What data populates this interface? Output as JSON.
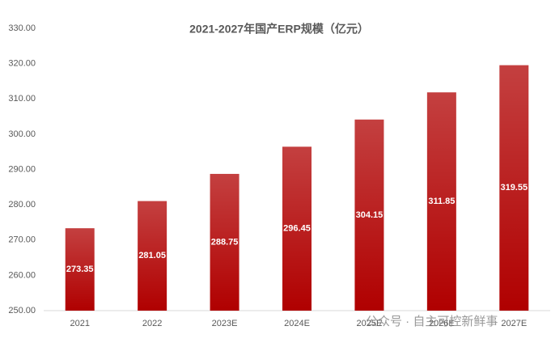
{
  "chart_data": {
    "type": "bar",
    "title": "2021-2027年国产ERP规模（亿元）",
    "categories": [
      "2021",
      "2022",
      "2023E",
      "2024E",
      "2025E",
      "2026E",
      "2027E"
    ],
    "values": [
      273.35,
      281.05,
      288.75,
      296.45,
      304.15,
      311.85,
      319.55
    ],
    "color": "#b00000",
    "ylim": [
      250,
      330
    ],
    "yticks": [
      {
        "value": 250,
        "label": "250.00"
      },
      {
        "value": 260,
        "label": "260.00"
      },
      {
        "value": 270,
        "label": "270.00"
      },
      {
        "value": 280,
        "label": "280.00"
      },
      {
        "value": 290,
        "label": "290.00"
      },
      {
        "value": 300,
        "label": "300.00"
      },
      {
        "value": 310,
        "label": "310.00"
      },
      {
        "value": 320,
        "label": "320.00"
      },
      {
        "value": 330,
        "label": "330.00"
      }
    ],
    "grid": false,
    "watermark": "公众号 · 自主可控新鲜事"
  }
}
